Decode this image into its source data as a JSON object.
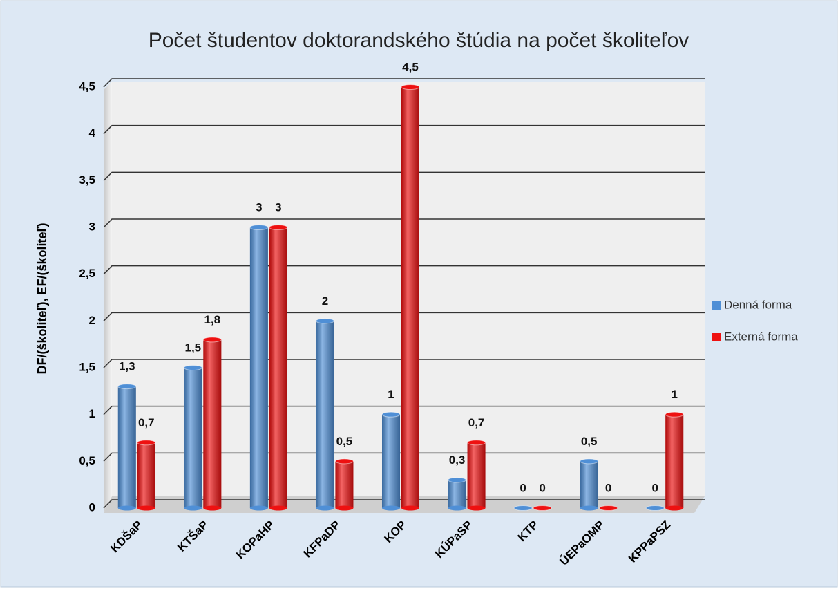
{
  "chart_data": {
    "type": "bar",
    "title": "Počet študentov doktorandského štúdia na počet školiteľov",
    "y_label": "DF/(školiteľ), EF/(školiteľ)",
    "categories": [
      "KDŠaP",
      "KTŠaP",
      "KOPaHP",
      "KFPaDP",
      "KOP",
      "KÚPaSP",
      "KTP",
      "ÚEPaOMP",
      "KPPaPSZ"
    ],
    "series": [
      {
        "name": "Denná forma",
        "color": "#4f8fd6",
        "values": [
          1.3,
          1.5,
          3,
          2,
          1,
          0.3,
          0,
          0.5,
          0
        ],
        "value_labels": [
          "1,3",
          "1,5",
          "3",
          "2",
          "1",
          "0,3",
          "0",
          "0,5",
          "0"
        ]
      },
      {
        "name": "Externá forma",
        "color": "#ee1111",
        "values": [
          0.7,
          1.8,
          3,
          0.5,
          4.5,
          0.7,
          0,
          0,
          1
        ],
        "value_labels": [
          "0,7",
          "1,8",
          "3",
          "0,5",
          "4,5",
          "0,7",
          "0",
          "0",
          "1"
        ]
      }
    ],
    "ylim": [
      0,
      4.5
    ],
    "yticks": [
      0,
      {
        "value": 0.5,
        "label": "0,5"
      },
      1,
      {
        "value": 1.5,
        "label": "1,5"
      },
      2,
      {
        "value": 2.5,
        "label": "2,5"
      },
      3,
      {
        "value": 3.5,
        "label": "3,5"
      },
      4,
      {
        "value": 4.5,
        "label": "4,5"
      }
    ],
    "grid": true,
    "legend": "right"
  }
}
